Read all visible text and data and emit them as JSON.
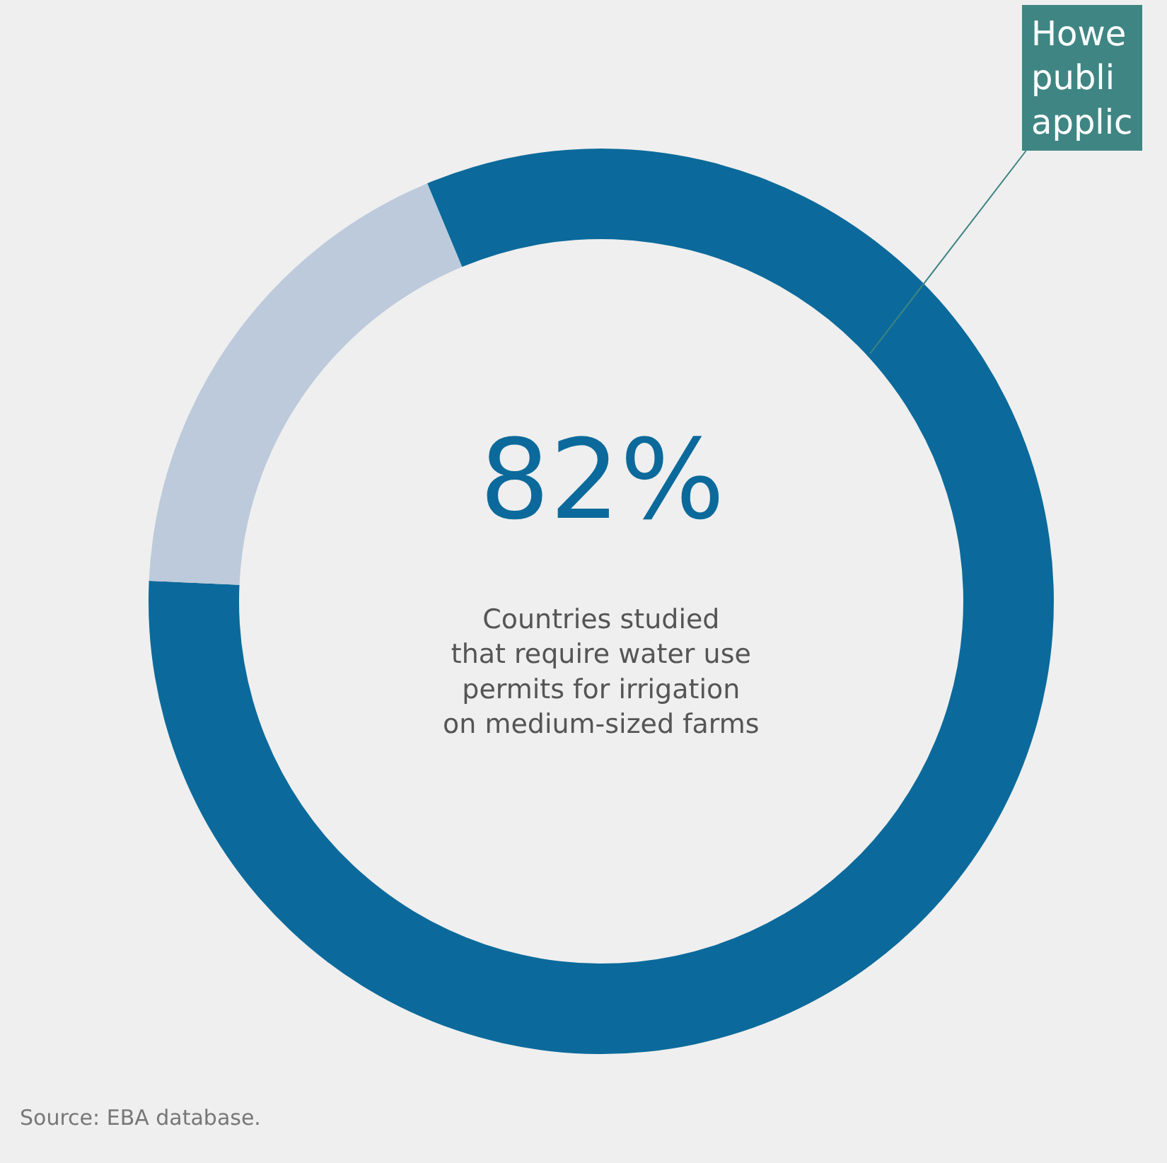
{
  "chart_data": {
    "type": "donut",
    "categories": [
      null,
      null
    ],
    "values": [
      82,
      18
    ],
    "colors": [
      "#0b6a9b",
      "#bccadb"
    ],
    "annotations": [
      "82%",
      "Countries studied\nthat require water use\npermits for irrigation\non medium-sized farms",
      "Howe\npubli\napplic",
      "Source: EBA database."
    ]
  }
}
